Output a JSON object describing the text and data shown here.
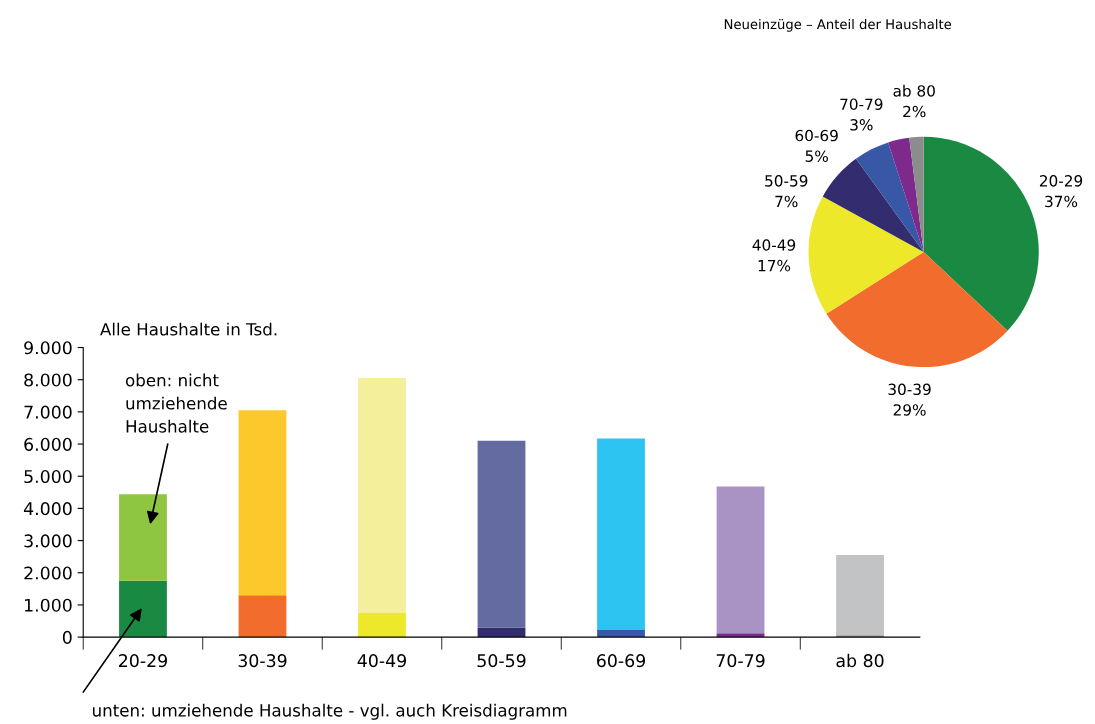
{
  "chart_data": [
    {
      "type": "bar",
      "stacked": true,
      "ylabel": "Alle Haushalte in Tsd.",
      "categories": [
        "20-29",
        "30-39",
        "40-49",
        "50-59",
        "60-69",
        "70-79",
        "ab 80"
      ],
      "series": [
        {
          "colors": [
            "#1a8a42",
            "#f26d2d",
            "#ede82a",
            "#332c6e",
            "#3857a6",
            "#7d2a8c",
            "#8c8c8c"
          ],
          "values": [
            1750,
            1300,
            750,
            300,
            220,
            120,
            60
          ]
        },
        {
          "colors": [
            "#8fc641",
            "#fcc82b",
            "#f3ef9a",
            "#636ba0",
            "#2dc4f2",
            "#a993c4",
            "#c2c3c5"
          ],
          "values": [
            2690,
            5750,
            7300,
            5800,
            5950,
            4560,
            2490
          ]
        }
      ],
      "ylim": [
        0,
        9000
      ],
      "yticks": [
        {
          "value": 0,
          "label": "0"
        },
        {
          "value": 1000,
          "label": "1.000"
        },
        {
          "value": 2000,
          "label": "2.000"
        },
        {
          "value": 3000,
          "label": "3.000"
        },
        {
          "value": 4000,
          "label": "4.000"
        },
        {
          "value": 5000,
          "label": "5.000"
        },
        {
          "value": 6000,
          "label": "6.000"
        },
        {
          "value": 7000,
          "label": "7.000"
        },
        {
          "value": 8000,
          "label": "8.000"
        },
        {
          "value": 9000,
          "label": "9.000"
        }
      ],
      "grid": false,
      "annotations": [
        "oben: nicht\numziehende\nHaushalte",
        "unten: umziehende Haushalte - vgl. auch Kreisdiagramm"
      ]
    },
    {
      "type": "pie",
      "title": "Neueinzüge – Anteil der Haushalte",
      "categories": [
        "20-29",
        "30-39",
        "40-49",
        "50-59",
        "60-69",
        "70-79",
        "ab 80"
      ],
      "values": [
        37,
        29,
        17,
        7,
        5,
        3,
        2
      ],
      "value_labels": [
        "37%",
        "29%",
        "17%",
        "7%",
        "5%",
        "3%",
        "2%"
      ],
      "colors": [
        "#1a8a42",
        "#f26d2d",
        "#ede82a",
        "#332c6e",
        "#3857a6",
        "#7d2a8c",
        "#8c8c8c"
      ]
    }
  ]
}
